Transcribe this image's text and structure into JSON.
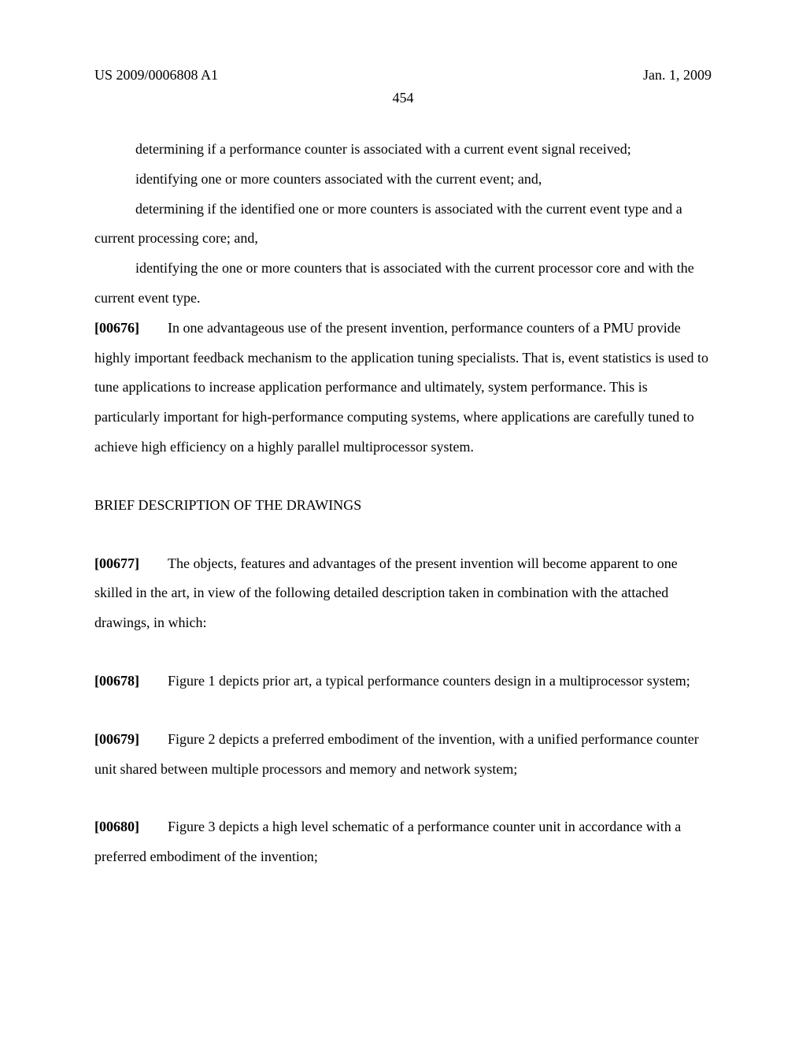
{
  "header": {
    "left": "US 2009/0006808 A1",
    "right": "Jan. 1, 2009"
  },
  "pageNumber": "454",
  "paragraphs": {
    "p1": "determining if a performance counter is associated with a current event signal received;",
    "p2": "identifying one or more counters associated with the current event; and,",
    "p3": "determining if the identified one or more counters is associated with the current event type and a current processing core; and,",
    "p4": "identifying the one or more counters that is associated with the current processor core and with the current event type.",
    "n676": "[00676]",
    "p5": "In one advantageous use of the present invention, performance counters of a PMU provide highly important feedback mechanism to the application tuning specialists. That is, event statistics is used to tune applications to increase application performance and ultimately, system performance. This is particularly important for high-performance computing systems, where applications are carefully tuned to achieve high efficiency on a highly parallel multiprocessor system.",
    "heading": "BRIEF DESCRIPTION OF THE DRAWINGS",
    "n677": "[00677]",
    "p6": "The objects, features and advantages of the present invention will become apparent to one skilled in the art, in view of the following detailed description taken in combination with the attached drawings, in which:",
    "n678": "[00678]",
    "p7": "Figure 1 depicts prior art, a typical performance counters design in a multiprocessor system;",
    "n679": "[00679]",
    "p8": "Figure 2 depicts a preferred embodiment of the invention, with a unified performance counter unit shared between multiple processors and memory and network system;",
    "n680": "[00680]",
    "p9": "Figure 3 depicts a high level schematic of a performance counter unit in accordance with a preferred embodiment of the invention;"
  },
  "style": {
    "background": "#ffffff",
    "textColor": "#000000",
    "fontSize": 18,
    "lineHeight": 2.1
  }
}
